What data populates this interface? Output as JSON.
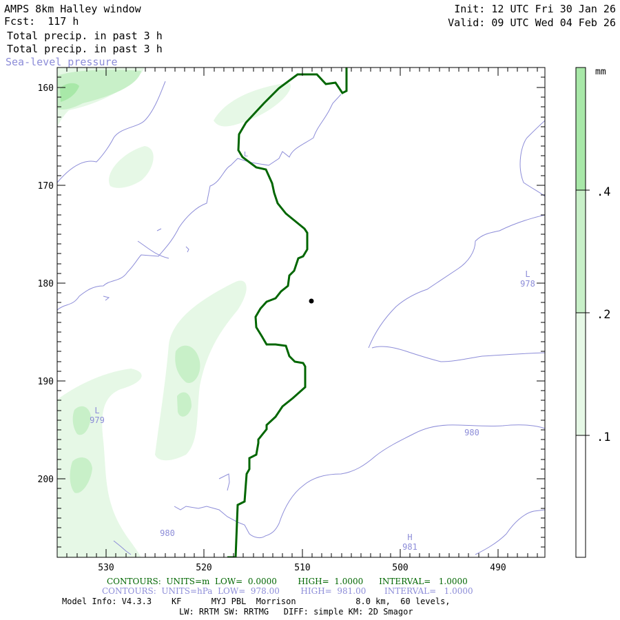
{
  "header": {
    "title": "AMPS 8km Halley window",
    "forecast": "Fcst:  117 h",
    "field1": "Total precip. in past 3 h",
    "field2": "Total precip. in past 3 h",
    "field3": "Sea-level pressure",
    "init": "Init: 12 UTC Fri 30 Jan 26",
    "valid": "Valid: 09 UTC Wed 04 Feb 26"
  },
  "map": {
    "y_ticks": [
      "160",
      "170",
      "180",
      "190",
      "200"
    ],
    "x_ticks": [
      "530",
      "520",
      "510",
      "500",
      "490"
    ],
    "pressure_labels": [
      {
        "text": "L",
        "value": "978"
      },
      {
        "text": "L",
        "value": "979"
      },
      {
        "text": "980"
      },
      {
        "text": "980"
      },
      {
        "text": "H",
        "value": "981"
      }
    ],
    "low_small": "L",
    "colors": {
      "precip_light": "#e6f8e6",
      "precip_mid": "#c8f0c8",
      "precip_dark": "#a8e8a8",
      "isobar": "#8c8cd8",
      "terrain_contour": "#006600"
    }
  },
  "colorbar": {
    "unit": "mm",
    "ticks": [
      ".4",
      ".2",
      ".1"
    ]
  },
  "footer": {
    "contours_terrain": "CONTOURS:  UNITS=m  LOW=  0.0000        HIGH=  1.0000      INTERVAL=   1.0000",
    "contours_slp": "CONTOURS:  UNITS=hPa  LOW=  978.00        HIGH=  981.00       INTERVAL=   1.0000",
    "model_info": "Model Info: V4.3.3    KF      MYJ PBL  Morrison            8.0 km,  60 levels,",
    "physics": "LW: RRTM SW: RRTMG   DIFF: simple KM: 2D Smagor"
  }
}
